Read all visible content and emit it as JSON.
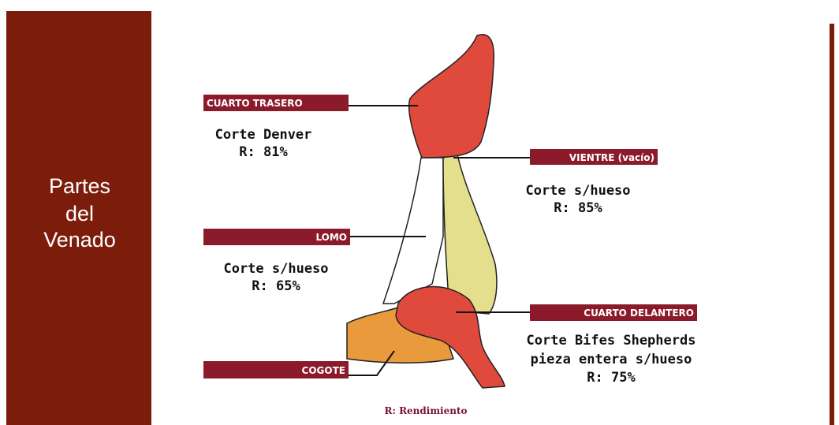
{
  "sidebar": {
    "title": [
      "Partes",
      "del",
      "Venado"
    ]
  },
  "parts": [
    {
      "label": "CUARTO TRASERO",
      "cut": [
        "Corte Denver"
      ],
      "yield": "R: 81%"
    },
    {
      "label": "VIENTRE (vacío)",
      "cut": [
        "Corte s/hueso"
      ],
      "yield": "R: 85%"
    },
    {
      "label": "LOMO",
      "cut": [
        "Corte s/hueso"
      ],
      "yield": "R: 65%"
    },
    {
      "label": "CUARTO DELANTERO",
      "cut": [
        "Corte Bifes Shepherds",
        "pieza entera s/hueso"
      ],
      "yield": "R: 75%"
    },
    {
      "label": "COGOTE",
      "cut": [],
      "yield": null
    }
  ],
  "footnote": "R: Rendimiento"
}
